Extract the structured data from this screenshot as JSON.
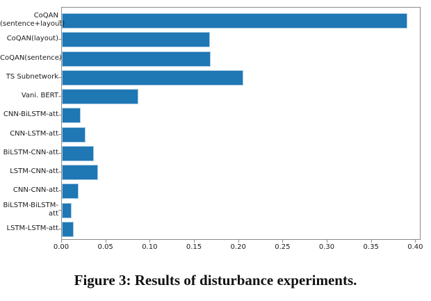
{
  "figure": {
    "caption": "Figure 3: Results of disturbance experiments."
  },
  "chart_data": {
    "type": "bar",
    "orientation": "horizontal",
    "title": "",
    "xlabel": "",
    "ylabel": "",
    "grid": false,
    "legend": null,
    "categories": [
      "CoQAN\n(sentence+layout)",
      "CoQAN(layout)",
      "CoQAN(sentence)",
      "TS Subnetwork",
      "Vani. BERT",
      "CNN-BiLSTM-att",
      "CNN-LSTM-att",
      "BiLSTM-CNN-att",
      "LSTM-CNN-att",
      "CNN-CNN-att",
      "BiLSTM-BiLSTM-att",
      "LSTM-LSTM-att"
    ],
    "values": [
      0.39,
      0.167,
      0.168,
      0.205,
      0.086,
      0.021,
      0.027,
      0.036,
      0.041,
      0.019,
      0.011,
      0.013
    ],
    "x_ticks": [
      "0.00",
      "0.05",
      "0.10",
      "0.15",
      "0.20",
      "0.25",
      "0.30",
      "0.35",
      "0.40"
    ],
    "xlim": [
      0,
      0.406
    ],
    "bar_color": "#1f77b4",
    "bar_edge_color": "#a9cbe5",
    "axis_color": "#8a8a8a",
    "text_color": "#1a1a1a"
  }
}
